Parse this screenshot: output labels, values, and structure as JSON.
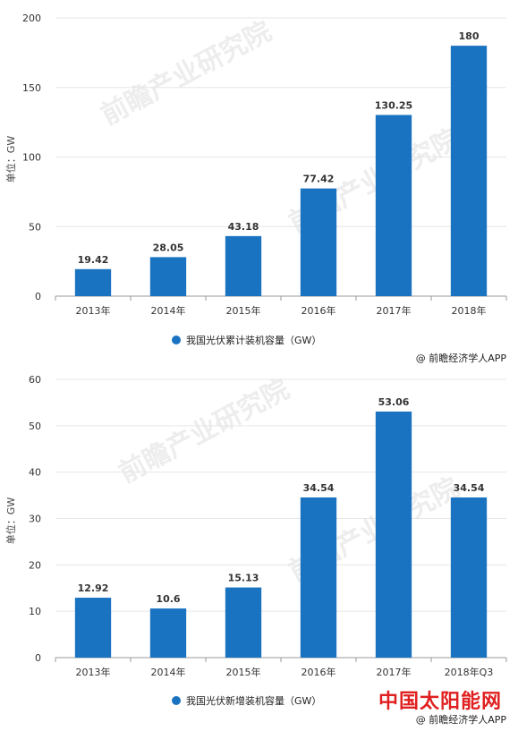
{
  "colors": {
    "bar": "#1a73c1",
    "grid": "#e6e6e6",
    "axis": "#999999",
    "brand": "#e02020"
  },
  "watermark": "前瞻产业研究院",
  "brand_mark": "中国太阳能网",
  "chart_data": [
    {
      "type": "bar",
      "categories": [
        "2013年",
        "2014年",
        "2015年",
        "2016年",
        "2017年",
        "2018年"
      ],
      "series": [
        {
          "name": "我国光伏累计装机容量（GW）",
          "values": [
            19.42,
            28.05,
            43.18,
            77.42,
            130.25,
            180
          ]
        }
      ],
      "data_labels": [
        "19.42",
        "28.05",
        "43.18",
        "77.42",
        "130.25",
        "180"
      ],
      "ylabel": "单位：GW",
      "ylim": [
        0,
        200
      ],
      "yticks": [
        0,
        50,
        100,
        150,
        200
      ],
      "ytick_labels": [
        "0",
        "50",
        "100",
        "150",
        "200"
      ],
      "grid": true,
      "legend": "bottom",
      "credit": "@ 前瞻经济学人APP"
    },
    {
      "type": "bar",
      "categories": [
        "2013年",
        "2014年",
        "2015年",
        "2016年",
        "2017年",
        "2018年Q3"
      ],
      "series": [
        {
          "name": "我国光伏新增装机容量（GW）",
          "values": [
            12.92,
            10.6,
            15.13,
            34.54,
            53.06,
            34.54
          ]
        }
      ],
      "data_labels": [
        "12.92",
        "10.6",
        "15.13",
        "34.54",
        "53.06",
        "34.54"
      ],
      "ylabel": "单位：GW",
      "ylim": [
        0,
        60
      ],
      "yticks": [
        0,
        10,
        20,
        30,
        40,
        50,
        60
      ],
      "ytick_labels": [
        "0",
        "10",
        "20",
        "30",
        "40",
        "50",
        "60"
      ],
      "grid": true,
      "legend": "bottom",
      "credit": "@ 前瞻经济学人APP"
    }
  ]
}
